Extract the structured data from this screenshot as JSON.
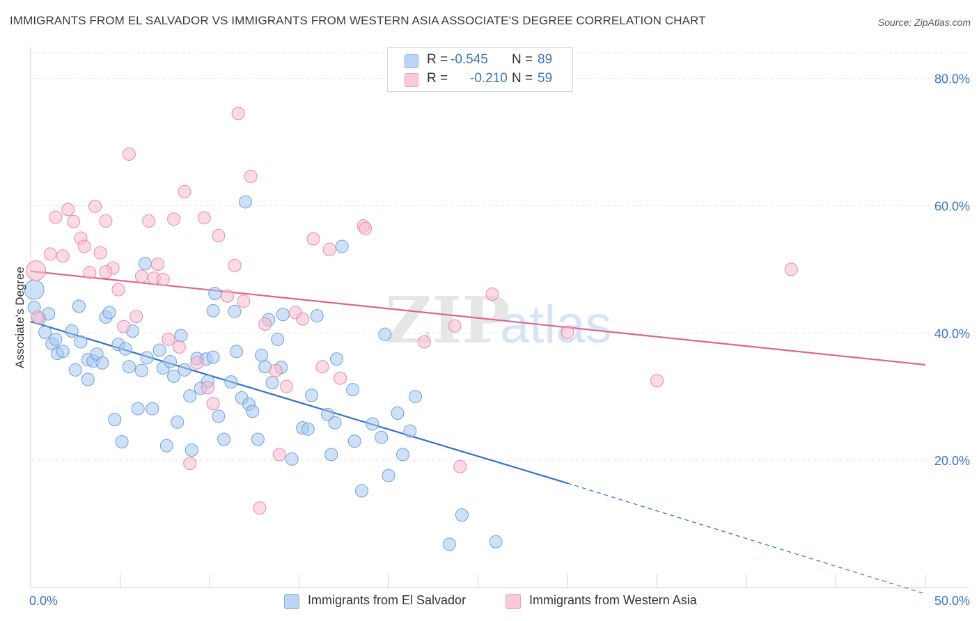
{
  "title": "IMMIGRANTS FROM EL SALVADOR VS IMMIGRANTS FROM WESTERN ASIA ASSOCIATE'S DEGREE CORRELATION CHART",
  "source": "Source: ZipAtlas.com",
  "watermark": {
    "zip": "ZIP",
    "atlas": "atlas"
  },
  "legend": {
    "r_label": "R =",
    "n_label": "N =",
    "series": [
      {
        "r": "-0.545",
        "n": "89"
      },
      {
        "r": "-0.210",
        "n": "59"
      }
    ]
  },
  "chart_data": {
    "type": "scatter",
    "title": "IMMIGRANTS FROM EL SALVADOR VS IMMIGRANTS FROM WESTERN ASIA ASSOCIATE'S DEGREE CORRELATION CHART",
    "xlabel": "",
    "ylabel": "Associate's Degree",
    "xlim": [
      0,
      50
    ],
    "ylim": [
      0,
      84
    ],
    "x_tick_labels": [
      "0.0%",
      "50.0%"
    ],
    "y_ticks": [
      20,
      40,
      60,
      80
    ],
    "y_tick_labels": [
      "20.0%",
      "40.0%",
      "60.0%",
      "80.0%"
    ],
    "grid": true,
    "legend_position": "top-center",
    "series": [
      {
        "name": "Immigrants from El Salvador",
        "color": "#a8c8f0",
        "edge_color": "#6f9fdc",
        "line_color": "#2f6fcf",
        "trend": {
          "x": [
            0,
            30
          ],
          "y": [
            41.8,
            16.4
          ],
          "dashed_to": [
            50,
            -1.0
          ]
        },
        "points": [
          [
            0.2,
            46.8
          ],
          [
            0.2,
            44.0
          ],
          [
            0.5,
            42.3
          ],
          [
            0.8,
            40.1
          ],
          [
            1.0,
            43.0
          ],
          [
            1.2,
            38.3
          ],
          [
            1.4,
            39.0
          ],
          [
            1.5,
            36.8
          ],
          [
            1.8,
            37.1
          ],
          [
            2.3,
            40.3
          ],
          [
            2.5,
            34.2
          ],
          [
            2.7,
            44.2
          ],
          [
            2.8,
            38.6
          ],
          [
            3.2,
            32.7
          ],
          [
            3.2,
            35.8
          ],
          [
            3.5,
            35.6
          ],
          [
            3.7,
            36.7
          ],
          [
            4.0,
            35.3
          ],
          [
            4.2,
            42.5
          ],
          [
            4.4,
            43.2
          ],
          [
            4.7,
            26.4
          ],
          [
            4.9,
            38.2
          ],
          [
            5.1,
            22.9
          ],
          [
            5.3,
            37.5
          ],
          [
            5.5,
            34.7
          ],
          [
            5.7,
            40.3
          ],
          [
            6.0,
            28.1
          ],
          [
            6.2,
            34.1
          ],
          [
            6.4,
            50.9
          ],
          [
            6.5,
            36.1
          ],
          [
            6.8,
            28.1
          ],
          [
            7.2,
            37.3
          ],
          [
            7.4,
            34.5
          ],
          [
            7.6,
            22.3
          ],
          [
            7.8,
            35.5
          ],
          [
            8.0,
            33.2
          ],
          [
            8.2,
            26.0
          ],
          [
            8.4,
            39.6
          ],
          [
            8.6,
            34.2
          ],
          [
            8.9,
            30.1
          ],
          [
            9.0,
            21.6
          ],
          [
            9.3,
            36.0
          ],
          [
            9.5,
            31.3
          ],
          [
            9.8,
            35.9
          ],
          [
            9.9,
            32.4
          ],
          [
            10.3,
            46.2
          ],
          [
            10.2,
            43.5
          ],
          [
            10.5,
            26.9
          ],
          [
            10.8,
            23.3
          ],
          [
            11.2,
            32.3
          ],
          [
            11.4,
            43.4
          ],
          [
            11.5,
            37.1
          ],
          [
            11.8,
            29.8
          ],
          [
            12.0,
            60.6
          ],
          [
            12.2,
            28.8
          ],
          [
            12.4,
            27.7
          ],
          [
            12.7,
            23.3
          ],
          [
            12.9,
            36.5
          ],
          [
            13.1,
            34.7
          ],
          [
            13.3,
            42.1
          ],
          [
            13.5,
            32.2
          ],
          [
            13.8,
            39.0
          ],
          [
            14.1,
            42.9
          ],
          [
            14.6,
            20.2
          ],
          [
            14.0,
            34.6
          ],
          [
            15.2,
            25.1
          ],
          [
            15.5,
            24.9
          ],
          [
            15.7,
            30.2
          ],
          [
            16.0,
            42.7
          ],
          [
            16.6,
            27.2
          ],
          [
            16.8,
            20.9
          ],
          [
            17.0,
            25.9
          ],
          [
            17.1,
            35.9
          ],
          [
            17.4,
            53.6
          ],
          [
            18.0,
            31.1
          ],
          [
            18.1,
            23.0
          ],
          [
            18.5,
            15.2
          ],
          [
            19.1,
            25.7
          ],
          [
            19.6,
            23.6
          ],
          [
            19.8,
            39.8
          ],
          [
            20.0,
            17.6
          ],
          [
            20.5,
            27.4
          ],
          [
            20.8,
            20.9
          ],
          [
            21.2,
            24.6
          ],
          [
            21.5,
            30.0
          ],
          [
            23.4,
            6.8
          ],
          [
            24.1,
            11.4
          ],
          [
            26.0,
            7.2
          ],
          [
            10.2,
            36.2
          ]
        ]
      },
      {
        "name": "Immigrants from Western Asia",
        "color": "#f7bcd0",
        "edge_color": "#e58aaa",
        "line_color": "#e0638f",
        "trend": {
          "x": [
            0,
            50
          ],
          "y": [
            49.7,
            35.0
          ]
        },
        "points": [
          [
            0.3,
            49.8
          ],
          [
            0.4,
            42.5
          ],
          [
            1.1,
            52.4
          ],
          [
            1.4,
            58.2
          ],
          [
            1.8,
            52.1
          ],
          [
            2.1,
            59.4
          ],
          [
            2.4,
            57.5
          ],
          [
            2.8,
            54.9
          ],
          [
            3.0,
            53.6
          ],
          [
            3.3,
            49.5
          ],
          [
            3.6,
            59.9
          ],
          [
            3.9,
            52.6
          ],
          [
            4.2,
            57.6
          ],
          [
            4.6,
            50.2
          ],
          [
            4.9,
            46.8
          ],
          [
            5.2,
            41.0
          ],
          [
            5.5,
            68.1
          ],
          [
            5.9,
            42.6
          ],
          [
            6.2,
            48.9
          ],
          [
            6.6,
            57.6
          ],
          [
            6.9,
            48.6
          ],
          [
            7.1,
            50.8
          ],
          [
            7.4,
            48.4
          ],
          [
            7.7,
            39.0
          ],
          [
            8.0,
            57.9
          ],
          [
            8.3,
            37.8
          ],
          [
            8.6,
            62.2
          ],
          [
            8.9,
            19.5
          ],
          [
            9.3,
            35.3
          ],
          [
            9.7,
            58.1
          ],
          [
            9.9,
            31.4
          ],
          [
            10.2,
            28.9
          ],
          [
            10.5,
            55.3
          ],
          [
            11.0,
            45.8
          ],
          [
            11.4,
            50.6
          ],
          [
            11.6,
            74.5
          ],
          [
            11.9,
            45.0
          ],
          [
            12.3,
            64.6
          ],
          [
            12.8,
            12.5
          ],
          [
            13.1,
            41.4
          ],
          [
            13.7,
            34.1
          ],
          [
            13.9,
            20.9
          ],
          [
            14.3,
            31.6
          ],
          [
            14.8,
            43.2
          ],
          [
            15.2,
            42.2
          ],
          [
            15.8,
            54.8
          ],
          [
            16.3,
            34.7
          ],
          [
            16.7,
            53.1
          ],
          [
            17.3,
            32.9
          ],
          [
            18.6,
            56.8
          ],
          [
            18.7,
            56.4
          ],
          [
            22.0,
            38.6
          ],
          [
            23.7,
            41.1
          ],
          [
            24.0,
            19.0
          ],
          [
            25.8,
            46.1
          ],
          [
            30.0,
            40.1
          ],
          [
            35.0,
            32.5
          ],
          [
            42.5,
            50.0
          ],
          [
            4.2,
            49.6
          ]
        ]
      }
    ]
  }
}
